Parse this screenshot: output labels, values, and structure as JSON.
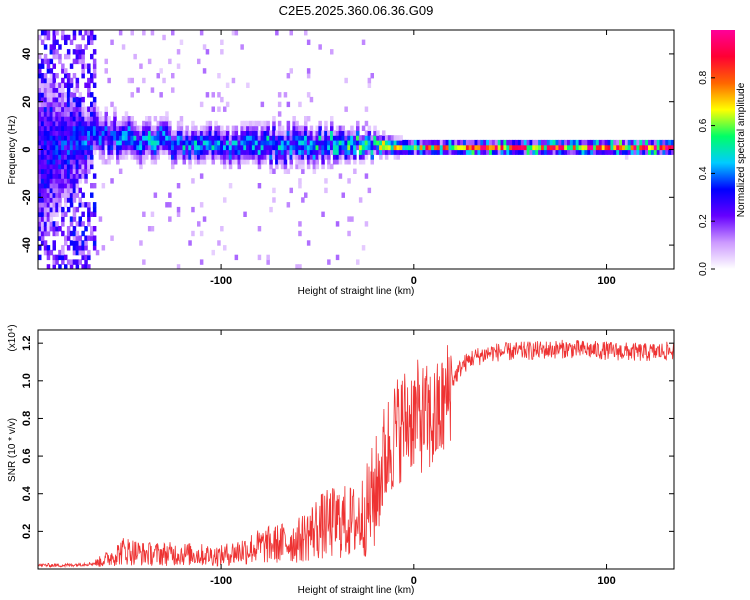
{
  "title": "C2E5.2025.360.06.36.G09",
  "chart_data": [
    {
      "type": "heatmap",
      "title": "C2E5.2025.360.06.36.G09",
      "xlabel": "Height of straight line (km)",
      "ylabel": "Frequency (Hz)",
      "xlim": [
        -195,
        135
      ],
      "ylim": [
        -50,
        50
      ],
      "xticks": [
        -100,
        0,
        100
      ],
      "yticks": [
        -40,
        -20,
        0,
        20,
        40
      ],
      "colorbar": {
        "label": "Normalized spectral amplitude",
        "range": [
          0,
          1
        ],
        "ticks": [
          0,
          0.2,
          0.4,
          0.6,
          0.8
        ],
        "colors": [
          "#ffffff",
          "#cc99ff",
          "#6600ff",
          "#0000ff",
          "#00ccff",
          "#00ff66",
          "#ffff00",
          "#ff6600",
          "#ff0033",
          "#ff0099"
        ]
      },
      "ridge": {
        "x": [
          -195,
          -165,
          -150,
          -120,
          -100,
          -80,
          -60,
          -40,
          -20,
          0,
          20,
          50,
          80,
          110,
          135
        ],
        "center_hz": [
          -5,
          6,
          3,
          2,
          1,
          1,
          1,
          2,
          1,
          0,
          0,
          0,
          0,
          0,
          0
        ],
        "width_hz": [
          40,
          10,
          9,
          8,
          8,
          9,
          9,
          8,
          5,
          3,
          3,
          3,
          3,
          3,
          3
        ],
        "peak_amplitude": [
          0.3,
          0.4,
          0.45,
          0.45,
          0.45,
          0.45,
          0.45,
          0.5,
          0.6,
          0.75,
          0.8,
          0.85,
          0.85,
          0.9,
          0.95
        ]
      }
    },
    {
      "type": "line",
      "xlabel": "Height of straight line (km)",
      "ylabel": "SNR (10 * v/v)",
      "y_multiplier": "(x10⁴)",
      "xlim": [
        -195,
        135
      ],
      "ylim": [
        0,
        1.27
      ],
      "xticks": [
        -100,
        0,
        100
      ],
      "yticks": [
        0.2,
        0.4,
        0.6,
        0.8,
        1.0,
        1.2
      ],
      "color": "#ee3333",
      "series": [
        {
          "name": "SNR",
          "x": [
            -195,
            -180,
            -165,
            -160,
            -150,
            -140,
            -120,
            -100,
            -80,
            -60,
            -50,
            -40,
            -30,
            -25,
            -20,
            -15,
            -10,
            -5,
            0,
            5,
            10,
            15,
            20,
            25,
            30,
            40,
            60,
            80,
            100,
            120,
            135
          ],
          "values": [
            0.02,
            0.02,
            0.03,
            0.05,
            0.1,
            0.08,
            0.08,
            0.07,
            0.12,
            0.15,
            0.22,
            0.25,
            0.25,
            0.3,
            0.4,
            0.6,
            0.72,
            0.78,
            0.82,
            0.8,
            0.78,
            0.85,
            1.0,
            1.08,
            1.12,
            1.15,
            1.16,
            1.17,
            1.16,
            1.15,
            1.16
          ]
        }
      ]
    }
  ]
}
